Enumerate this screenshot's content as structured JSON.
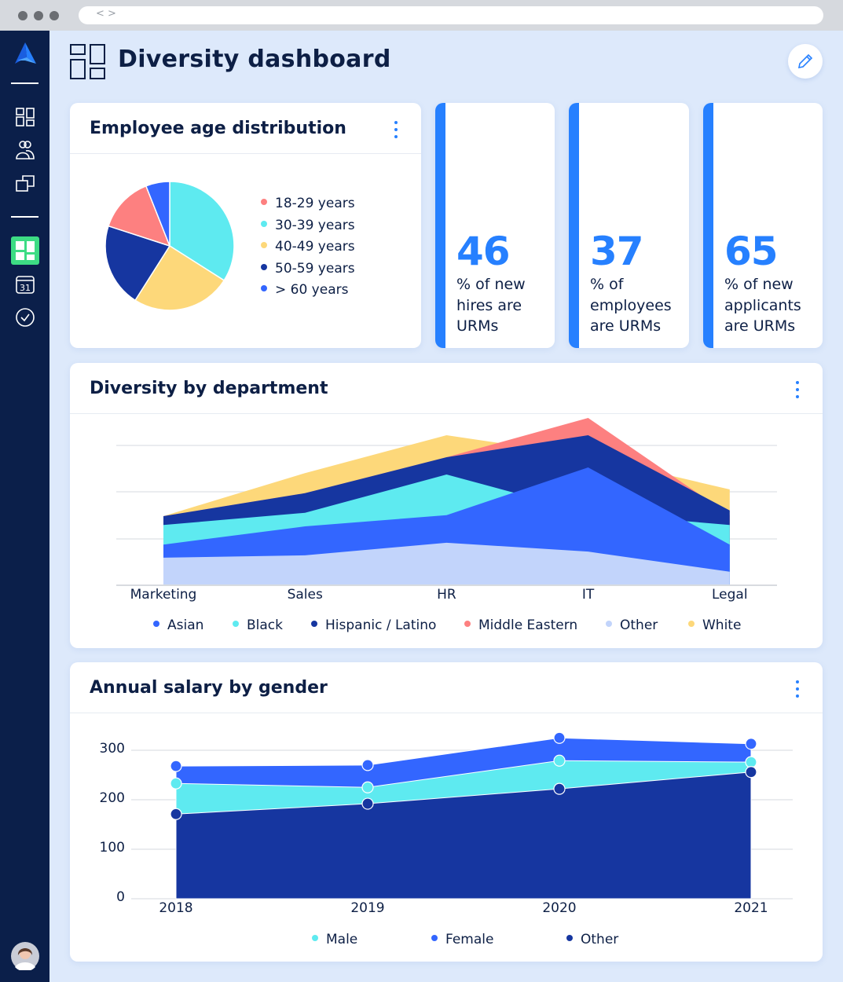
{
  "browser": {
    "nav_label": "< >"
  },
  "sidebar": {
    "items": [
      {
        "icon": "dashboard-grid-icon"
      },
      {
        "icon": "people-icon"
      },
      {
        "icon": "windows-icon"
      },
      {
        "icon": "dashboard-active-icon",
        "active": true
      },
      {
        "icon": "calendar-icon",
        "label": "31"
      },
      {
        "icon": "check-circle-icon"
      }
    ],
    "avatar": "user-avatar"
  },
  "header": {
    "title": "Diversity dashboard",
    "edit_icon": "pencil-icon"
  },
  "colors": {
    "accent": "#2680ff",
    "sidebar": "#0b1f4a",
    "active": "#3ddc84"
  },
  "kpis": [
    {
      "value": "46",
      "label": "% of new hires are URMs"
    },
    {
      "value": "37",
      "label": "% of employees are URMs"
    },
    {
      "value": "65",
      "label": "% of new applicants are URMs"
    }
  ],
  "chart_data": [
    {
      "type": "pie",
      "title": "Employee age distribution",
      "legend_position": "right",
      "slices": [
        {
          "name": "18-29 years",
          "value": 14,
          "color": "#fd8080"
        },
        {
          "name": "30-39 years",
          "value": 34,
          "color": "#5eeaf0"
        },
        {
          "name": "40-49 years",
          "value": 25,
          "color": "#fdd87a"
        },
        {
          "name": "50-59 years",
          "value": 21,
          "color": "#1636a0"
        },
        {
          "name": "> 60 years",
          "value": 6,
          "color": "#3366ff"
        }
      ],
      "draw_order": [
        "30-39 years",
        "40-49 years",
        "50-59 years",
        "18-29 years",
        "> 60 years"
      ]
    },
    {
      "type": "area",
      "title": "Diversity by department",
      "grid": true,
      "legend_position": "bottom",
      "ylim": [
        0,
        36
      ],
      "categories": [
        "Marketing",
        "Sales",
        "HR",
        "IT",
        "Legal"
      ],
      "series": [
        {
          "name": "Asian",
          "color": "#3366ff",
          "values": [
            8.7,
            12.6,
            15.0,
            25.2,
            8.7
          ]
        },
        {
          "name": "Black",
          "color": "#5eeaf0",
          "values": [
            12.9,
            15.5,
            23.7,
            15.5,
            12.9
          ]
        },
        {
          "name": "Hispanic / Latino",
          "color": "#1636a0",
          "values": [
            14.8,
            19.7,
            27.4,
            32.1,
            16.0
          ]
        },
        {
          "name": "Middle Eastern",
          "color": "#fd8080",
          "values": [
            14.8,
            19.7,
            27.4,
            35.8,
            15.0
          ]
        },
        {
          "name": "Other",
          "color": "#c2d4fb",
          "values": [
            5.9,
            6.4,
            9.1,
            7.2,
            2.9
          ]
        },
        {
          "name": "White",
          "color": "#fdd87a",
          "values": [
            14.8,
            24.0,
            32.1,
            27.6,
            20.5
          ]
        }
      ],
      "draw_order": [
        "White",
        "Middle Eastern",
        "Hispanic / Latino",
        "Black",
        "Asian",
        "Other"
      ]
    },
    {
      "type": "area",
      "title": "Annual salary by gender",
      "grid": true,
      "legend_position": "bottom",
      "ylim": [
        0,
        300
      ],
      "yticks": [
        "0",
        "100",
        "200",
        "300"
      ],
      "categories": [
        "2018",
        "2019",
        "2020",
        "2021"
      ],
      "series": [
        {
          "name": "Male",
          "color": "#5eeaf0",
          "values": [
            233,
            225,
            279,
            276
          ]
        },
        {
          "name": "Female",
          "color": "#3366ff",
          "values": [
            268,
            270,
            325,
            313
          ]
        },
        {
          "name": "Other",
          "color": "#1636a0",
          "values": [
            171,
            192,
            222,
            256
          ]
        }
      ],
      "draw_order": [
        "Female",
        "Male",
        "Other"
      ]
    }
  ]
}
